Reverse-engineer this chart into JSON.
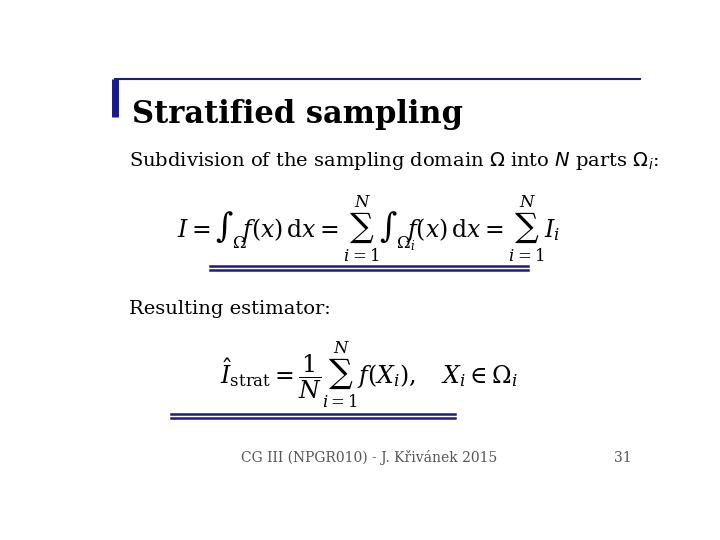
{
  "title": "Stratified sampling",
  "subtitle": "Subdivision of the sampling domain $\\Omega$ into $N$ parts $\\Omega_i$:",
  "section2": "Resulting estimator:",
  "footer": "CG III (NPGR010) - J. Křivánek 2015",
  "page": "31",
  "bg_color": "#ffffff",
  "title_color": "#000000",
  "text_color": "#000000",
  "accent_color": "#1a1a8c",
  "underline_color": "#1a1a8c",
  "title_fontsize": 22,
  "subtitle_fontsize": 14,
  "eq_fontsize": 17,
  "section_fontsize": 14,
  "footer_fontsize": 10
}
